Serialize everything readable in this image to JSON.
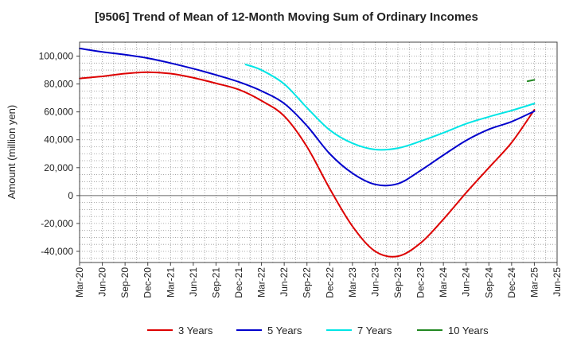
{
  "chart_data": {
    "type": "line",
    "title": "[9506]  Trend of Mean of 12-Month Moving Sum of Ordinary Incomes",
    "xlabel": "",
    "ylabel": "Amount (million yen)",
    "ylim": [
      -48000,
      110000
    ],
    "yticks": [
      100000,
      80000,
      60000,
      40000,
      20000,
      0,
      -20000,
      -40000
    ],
    "ytick_labels": [
      "100,000",
      "80,000",
      "60,000",
      "40,000",
      "20,000",
      "0",
      "-20,000",
      "-40,000"
    ],
    "x_categories": [
      "Mar-20",
      "Jun-20",
      "Sep-20",
      "Dec-20",
      "Mar-21",
      "Jun-21",
      "Sep-21",
      "Dec-21",
      "Mar-22",
      "Jun-22",
      "Sep-22",
      "Dec-22",
      "Mar-23",
      "Jun-23",
      "Sep-23",
      "Dec-23",
      "Mar-24",
      "Jun-24",
      "Sep-24",
      "Dec-24",
      "Mar-25",
      "Jun-25"
    ],
    "grid": true,
    "series": [
      {
        "name": "3 Years",
        "color": "#dd0000",
        "points": [
          [
            0,
            84000
          ],
          [
            1,
            85500
          ],
          [
            2,
            87500
          ],
          [
            3,
            88500
          ],
          [
            4,
            87500
          ],
          [
            5,
            84500
          ],
          [
            6,
            80500
          ],
          [
            7,
            76000
          ],
          [
            8,
            68000
          ],
          [
            9,
            57000
          ],
          [
            10,
            35000
          ],
          [
            11,
            5000
          ],
          [
            12,
            -22000
          ],
          [
            13,
            -40000
          ],
          [
            14,
            -43500
          ],
          [
            15,
            -34000
          ],
          [
            16,
            -17000
          ],
          [
            17,
            2000
          ],
          [
            18,
            20000
          ],
          [
            19,
            38000
          ],
          [
            20,
            61500
          ]
        ]
      },
      {
        "name": "5 Years",
        "color": "#0000cc",
        "points": [
          [
            0,
            105500
          ],
          [
            1,
            103000
          ],
          [
            2,
            101000
          ],
          [
            3,
            98500
          ],
          [
            4,
            95000
          ],
          [
            5,
            91000
          ],
          [
            6,
            86500
          ],
          [
            7,
            81500
          ],
          [
            8,
            75000
          ],
          [
            9,
            66000
          ],
          [
            10,
            50000
          ],
          [
            11,
            30000
          ],
          [
            12,
            16000
          ],
          [
            13,
            8000
          ],
          [
            14,
            8500
          ],
          [
            15,
            18000
          ],
          [
            16,
            29000
          ],
          [
            17,
            39500
          ],
          [
            18,
            47500
          ],
          [
            19,
            53000
          ],
          [
            20,
            60500
          ]
        ]
      },
      {
        "name": "7 Years",
        "color": "#00e5e5",
        "points": [
          [
            7.3,
            94000
          ],
          [
            8,
            90000
          ],
          [
            9,
            80000
          ],
          [
            10,
            63000
          ],
          [
            11,
            47000
          ],
          [
            12,
            37500
          ],
          [
            13,
            33000
          ],
          [
            14,
            34000
          ],
          [
            15,
            39000
          ],
          [
            16,
            45000
          ],
          [
            17,
            51500
          ],
          [
            18,
            56500
          ],
          [
            19,
            61000
          ],
          [
            20,
            66000
          ]
        ]
      },
      {
        "name": "10 Years",
        "color": "#228822",
        "points": [
          [
            19.7,
            82000
          ],
          [
            20,
            83000
          ]
        ]
      }
    ],
    "legend": {
      "position": "bottom",
      "entries": [
        "3 Years",
        "5 Years",
        "7 Years",
        "10 Years"
      ]
    }
  }
}
